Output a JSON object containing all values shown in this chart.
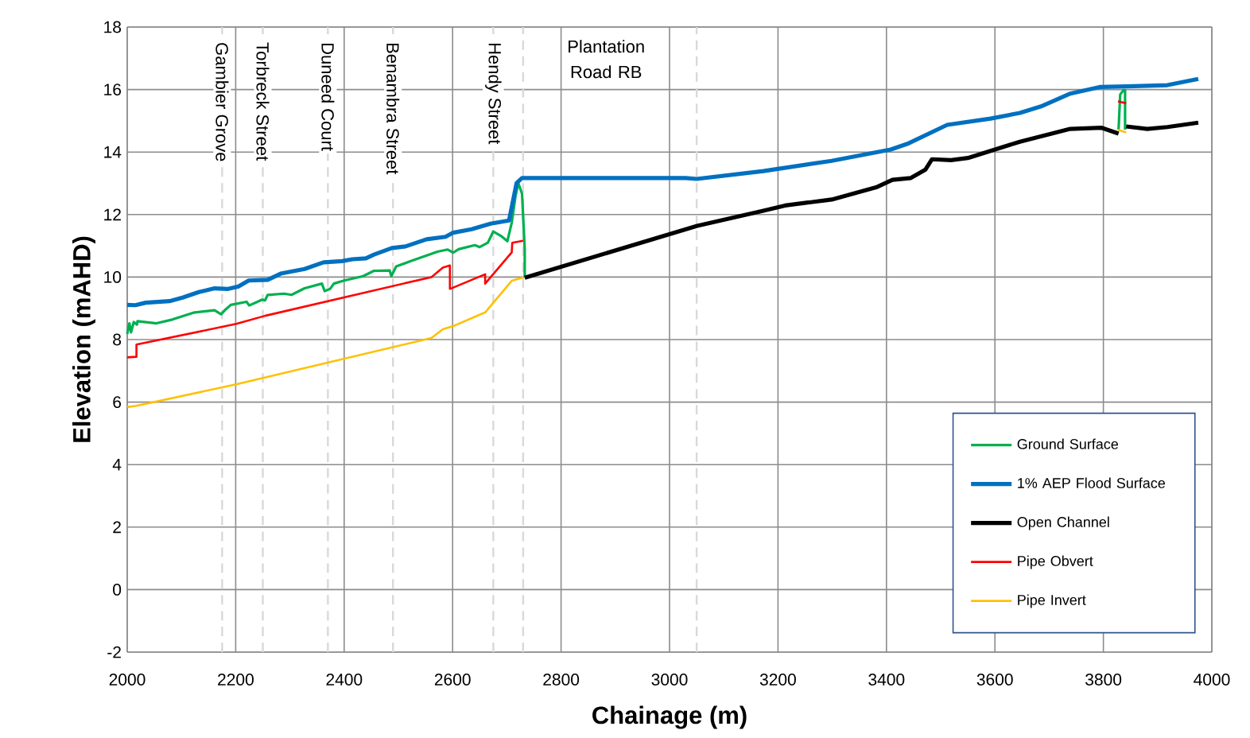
{
  "chart_data": {
    "type": "line",
    "xlabel": "Chainage (m)",
    "ylabel": "Elevation (mAHD)",
    "xlim": [
      2000,
      4000
    ],
    "ylim": [
      -2,
      18
    ],
    "xticks": [
      2000,
      2200,
      2400,
      2600,
      2800,
      3000,
      3200,
      3400,
      3600,
      3800,
      4000
    ],
    "yticks": [
      -2,
      0,
      2,
      4,
      6,
      8,
      10,
      12,
      14,
      16,
      18
    ],
    "grid": true,
    "legend": "bottom right",
    "series": [
      {
        "name": "Ground Surface",
        "color": "#00b050",
        "x": [
          2000,
          2004,
          2007,
          2012,
          2018,
          2019,
          2054,
          2083,
          2122,
          2161,
          2173,
          2180,
          2191,
          2220,
          2225,
          2249,
          2254,
          2259,
          2289,
          2303,
          2327,
          2359,
          2364,
          2374,
          2381,
          2400,
          2435,
          2455,
          2484,
          2487,
          2496,
          2523,
          2572,
          2591,
          2601,
          2611,
          2641,
          2650,
          2665,
          2675,
          2689,
          2701,
          2709,
          2716,
          2721,
          2728,
          2733,
          2733,
          2780,
          3828,
          3831,
          3837,
          3840,
          3840
        ],
        "values": [
          8.18,
          8.52,
          8.23,
          8.56,
          8.48,
          8.59,
          8.52,
          8.64,
          8.86,
          8.94,
          8.81,
          8.94,
          9.11,
          9.21,
          9.09,
          9.28,
          9.25,
          9.43,
          9.47,
          9.43,
          9.64,
          9.79,
          9.55,
          9.62,
          9.79,
          9.89,
          10.03,
          10.2,
          10.21,
          10.03,
          10.34,
          10.51,
          10.81,
          10.88,
          10.78,
          10.89,
          11.02,
          10.96,
          11.1,
          11.46,
          11.32,
          11.15,
          11.74,
          12.59,
          13.01,
          12.67,
          10.89,
          10.01,
          null,
          14.72,
          15.84,
          15.98,
          15.98,
          14.72
        ]
      },
      {
        "name": "1% AEP Flood Surface",
        "color": "#0070c0",
        "x": [
          2000,
          2015,
          2034,
          2078,
          2103,
          2132,
          2161,
          2186,
          2205,
          2224,
          2259,
          2283,
          2327,
          2362,
          2396,
          2415,
          2440,
          2455,
          2488,
          2513,
          2552,
          2587,
          2601,
          2635,
          2670,
          2704,
          2718,
          2728,
          3030,
          3050,
          3173,
          3299,
          3408,
          3441,
          3512,
          3592,
          3646,
          3685,
          3739,
          3793,
          3843,
          3918,
          3975
        ],
        "values": [
          9.11,
          9.1,
          9.18,
          9.23,
          9.35,
          9.52,
          9.64,
          9.62,
          9.7,
          9.89,
          9.91,
          10.11,
          10.26,
          10.47,
          10.51,
          10.57,
          10.6,
          10.72,
          10.93,
          10.98,
          11.21,
          11.29,
          11.42,
          11.53,
          11.71,
          11.81,
          13.01,
          13.17,
          13.17,
          13.14,
          13.39,
          13.72,
          14.08,
          14.28,
          14.87,
          15.07,
          15.25,
          15.46,
          15.87,
          16.08,
          16.1,
          16.14,
          16.34
        ]
      },
      {
        "name": "Open Channel",
        "color": "#000000",
        "x": [
          2733,
          3051,
          3173,
          3213,
          3299,
          3381,
          3411,
          3445,
          3472,
          3484,
          3519,
          3550,
          3646,
          3739,
          3796,
          3828,
          3835,
          3842,
          3881,
          3918,
          3975
        ],
        "values": [
          9.98,
          11.64,
          12.12,
          12.29,
          12.48,
          12.87,
          13.11,
          13.17,
          13.44,
          13.77,
          13.74,
          13.81,
          14.33,
          14.74,
          14.78,
          14.59,
          null,
          14.82,
          14.74,
          14.8,
          14.94
        ]
      },
      {
        "name": "Pipe Obvert",
        "color": "#ff0000",
        "x": [
          2000,
          2017,
          2017,
          2201,
          2254,
          2561,
          2582,
          2595,
          2595,
          2660,
          2660,
          2709,
          2710,
          2730,
          2780,
          3827,
          3842
        ],
        "values": [
          7.43,
          7.45,
          7.84,
          8.5,
          8.76,
          10.0,
          10.3,
          10.37,
          9.62,
          10.09,
          9.79,
          10.79,
          11.1,
          11.16,
          null,
          15.62,
          15.56
        ]
      },
      {
        "name": "Pipe Invert",
        "color": "#ffc000",
        "x": [
          2000,
          2017,
          2201,
          2561,
          2582,
          2601,
          2660,
          2709,
          2731,
          2780,
          3827,
          3842
        ],
        "values": [
          5.84,
          5.88,
          6.57,
          8.05,
          8.33,
          8.43,
          8.87,
          9.88,
          9.99,
          null,
          14.71,
          14.63
        ]
      }
    ],
    "ref_lines": [
      {
        "axis": "x",
        "value": 2175,
        "label": "Gambier Grove",
        "color": "#d9d9d9",
        "line_style": "dashed"
      },
      {
        "axis": "x",
        "value": 2250,
        "label": "Torbreck Street",
        "color": "#d9d9d9",
        "line_style": "dashed"
      },
      {
        "axis": "x",
        "value": 2370,
        "label": "Duneed Court",
        "color": "#d9d9d9",
        "line_style": "dashed"
      },
      {
        "axis": "x",
        "value": 2490,
        "label": "Benambra Street",
        "color": "#d9d9d9",
        "line_style": "dashed"
      },
      {
        "axis": "x",
        "value": 2675,
        "label": "Hendy Street",
        "color": "#d9d9d9",
        "line_style": "dashed"
      },
      {
        "axis": "x",
        "value": 2730,
        "color": "#d9d9d9",
        "line_style": "dashed"
      },
      {
        "axis": "x",
        "value": 3050,
        "color": "#d9d9d9",
        "line_style": "dashed"
      }
    ],
    "annotations": [
      "Plantation Road RB"
    ]
  }
}
